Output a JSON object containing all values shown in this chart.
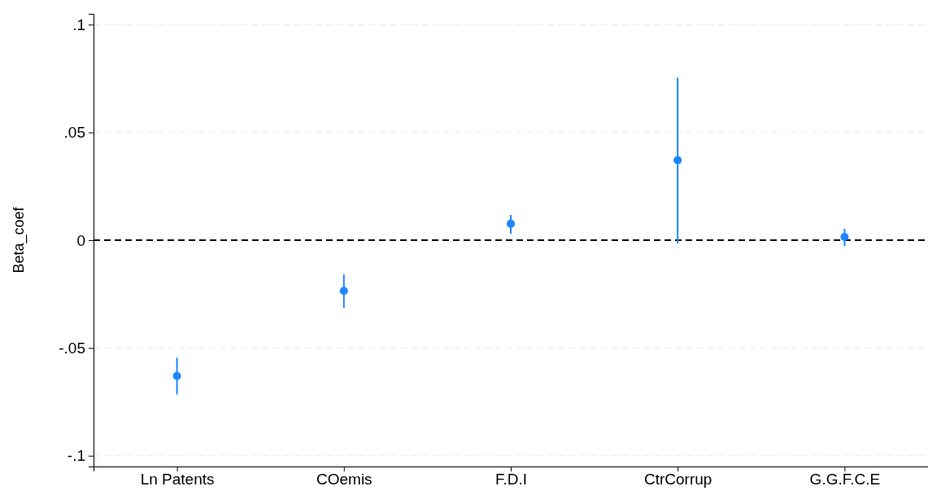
{
  "chart_data": {
    "type": "scatter",
    "ylabel": "Beta_coef",
    "categories": [
      "Ln Patents",
      "COemis",
      "F.D.I",
      "CtrCorrup",
      "G.G.F.C.E"
    ],
    "values": [
      -0.063,
      -0.0235,
      0.0076,
      0.0371,
      0.0015
    ],
    "errors": [
      [
        -0.0716,
        -0.0545
      ],
      [
        -0.0314,
        -0.0159
      ],
      [
        0.003,
        0.0117
      ],
      [
        -0.0015,
        0.0754
      ],
      [
        -0.0027,
        0.0053
      ]
    ],
    "color": "#1e87ff",
    "marker": "circle",
    "ylim": [
      -0.105,
      0.105
    ],
    "yticks": [
      {
        "value": -0.1,
        "label": "-.1"
      },
      {
        "value": -0.05,
        "label": "-.05"
      },
      0,
      {
        "value": 0.05,
        "label": ".05"
      },
      {
        "value": 0.1,
        "label": ".1"
      }
    ],
    "grid": "y",
    "ref_lines": [
      {
        "axis": "y",
        "value": 0,
        "color": "#000000",
        "line_style": "dashed"
      }
    ]
  }
}
